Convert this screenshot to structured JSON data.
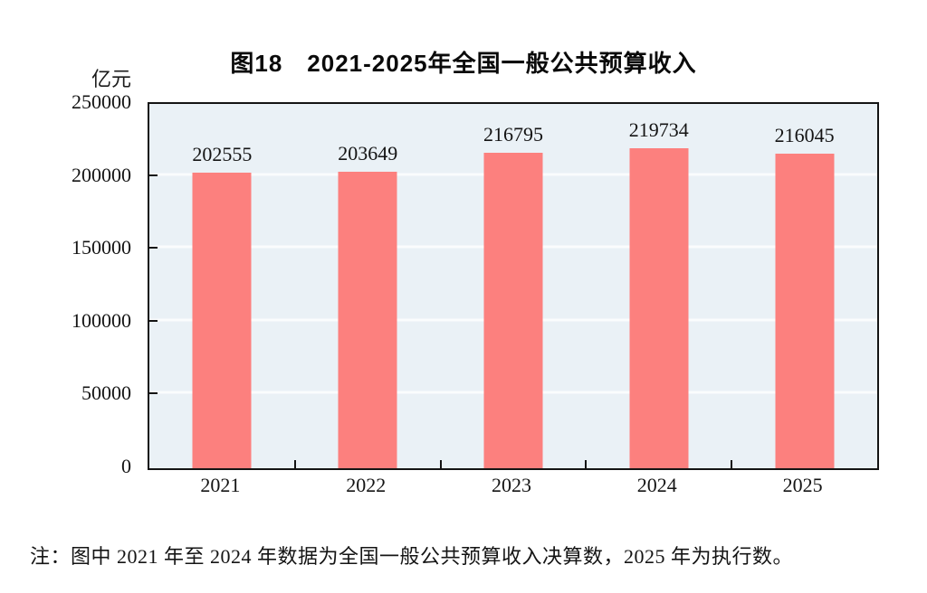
{
  "chart_data": {
    "type": "bar",
    "title": "图18　2021-2025年全国一般公共预算收入",
    "unit_label": "亿元",
    "categories": [
      "2021",
      "2022",
      "2023",
      "2024",
      "2025"
    ],
    "values": [
      202555,
      203649,
      216795,
      219734,
      216045
    ],
    "xlabel": "",
    "ylabel": "亿元",
    "ylim": [
      0,
      250000
    ],
    "yticks": [
      0,
      50000,
      100000,
      150000,
      200000,
      250000
    ],
    "grid": true,
    "legend": "none",
    "bar_color": "#fc807e",
    "plot_background": "#eaf1f6",
    "gridline_color": "#fafcfd",
    "axis_color": "#141414",
    "note": "注：图中 2021 年至 2024 年数据为全国一般公共预算收入决算数，2025 年为执行数。"
  }
}
